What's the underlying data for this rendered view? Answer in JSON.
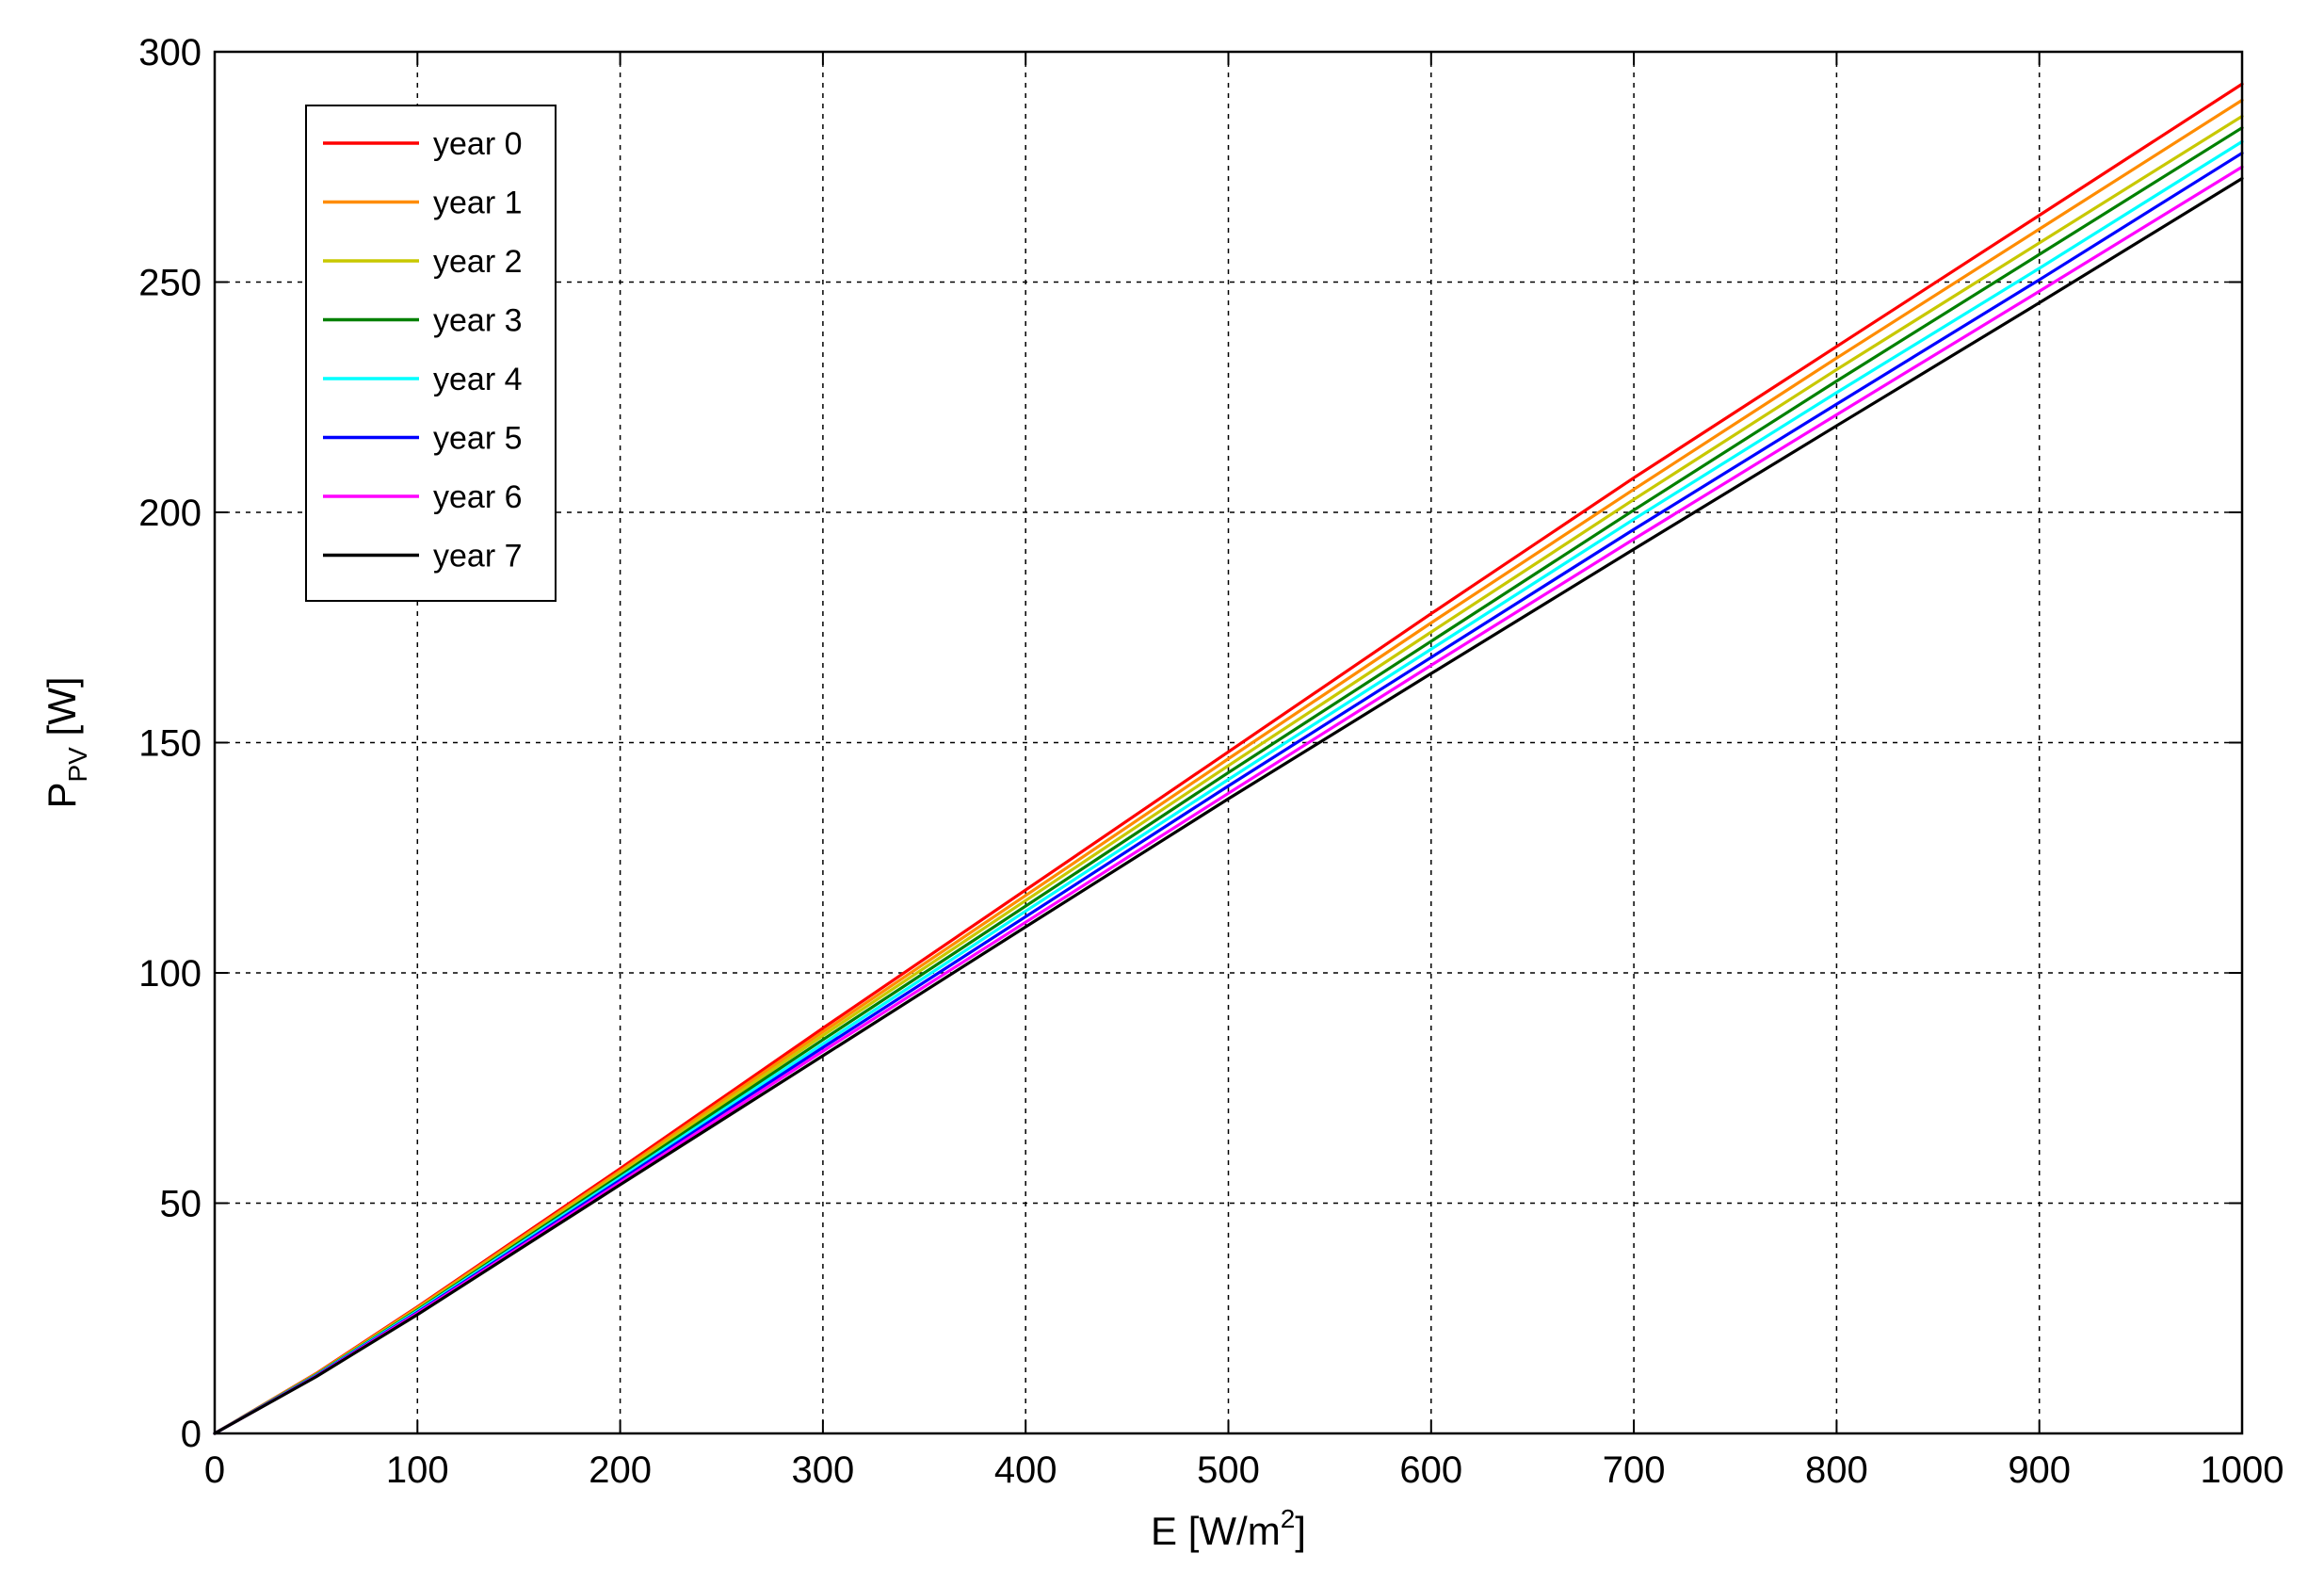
{
  "chart_data": {
    "type": "line",
    "xlabel": "E [W/m",
    "xlabel_sup": "2",
    "xlabel_end": "]",
    "ylabel_main": "P",
    "ylabel_sub": "PV",
    "ylabel_end": " [W]",
    "xlim": [
      0,
      1000
    ],
    "ylim": [
      0,
      300
    ],
    "x_ticks": [
      "0",
      "100",
      "200",
      "300",
      "400",
      "500",
      "600",
      "700",
      "800",
      "900",
      "1000"
    ],
    "y_ticks": [
      "0",
      "50",
      "100",
      "150",
      "200",
      "250",
      "300"
    ],
    "grid": true,
    "legend_position": "top-left",
    "x": [
      0,
      50,
      100,
      200,
      300,
      400,
      500,
      600,
      700,
      800,
      900,
      1000
    ],
    "series": [
      {
        "name": "year 0",
        "color": "#ff0000",
        "values": [
          0,
          13.0,
          27.5,
          57.5,
          88.0,
          118.0,
          148.0,
          178.0,
          207.5,
          236.0,
          264.5,
          293.0
        ]
      },
      {
        "name": "year 1",
        "color": "#ff8c00",
        "values": [
          0,
          12.9,
          27.3,
          57.0,
          87.2,
          116.8,
          146.5,
          176.0,
          205.0,
          233.5,
          261.5,
          289.5
        ]
      },
      {
        "name": "year 2",
        "color": "#c8c800",
        "values": [
          0,
          12.8,
          27.0,
          56.5,
          86.4,
          115.7,
          145.0,
          174.0,
          202.8,
          231.0,
          258.5,
          286.0
        ]
      },
      {
        "name": "year 3",
        "color": "#008000",
        "values": [
          0,
          12.7,
          26.8,
          56.0,
          85.5,
          114.5,
          143.5,
          172.0,
          200.5,
          228.5,
          256.0,
          283.5
        ]
      },
      {
        "name": "year 4",
        "color": "#00ffff",
        "values": [
          0,
          12.6,
          26.6,
          55.5,
          84.6,
          113.4,
          142.0,
          170.3,
          198.5,
          226.0,
          253.0,
          280.5
        ]
      },
      {
        "name": "year 5",
        "color": "#0000ff",
        "values": [
          0,
          12.5,
          26.3,
          55.0,
          83.8,
          112.2,
          140.6,
          168.5,
          196.3,
          223.5,
          250.5,
          278.0
        ]
      },
      {
        "name": "year 6",
        "color": "#ff00ff",
        "values": [
          0,
          12.4,
          26.1,
          54.5,
          83.0,
          111.0,
          139.0,
          166.8,
          194.2,
          221.2,
          248.0,
          275.0
        ]
      },
      {
        "name": "year 7",
        "color": "#000000",
        "values": [
          0,
          12.3,
          25.8,
          54.0,
          82.0,
          110.0,
          137.8,
          165.0,
          192.0,
          218.8,
          245.5,
          272.5
        ]
      }
    ]
  }
}
